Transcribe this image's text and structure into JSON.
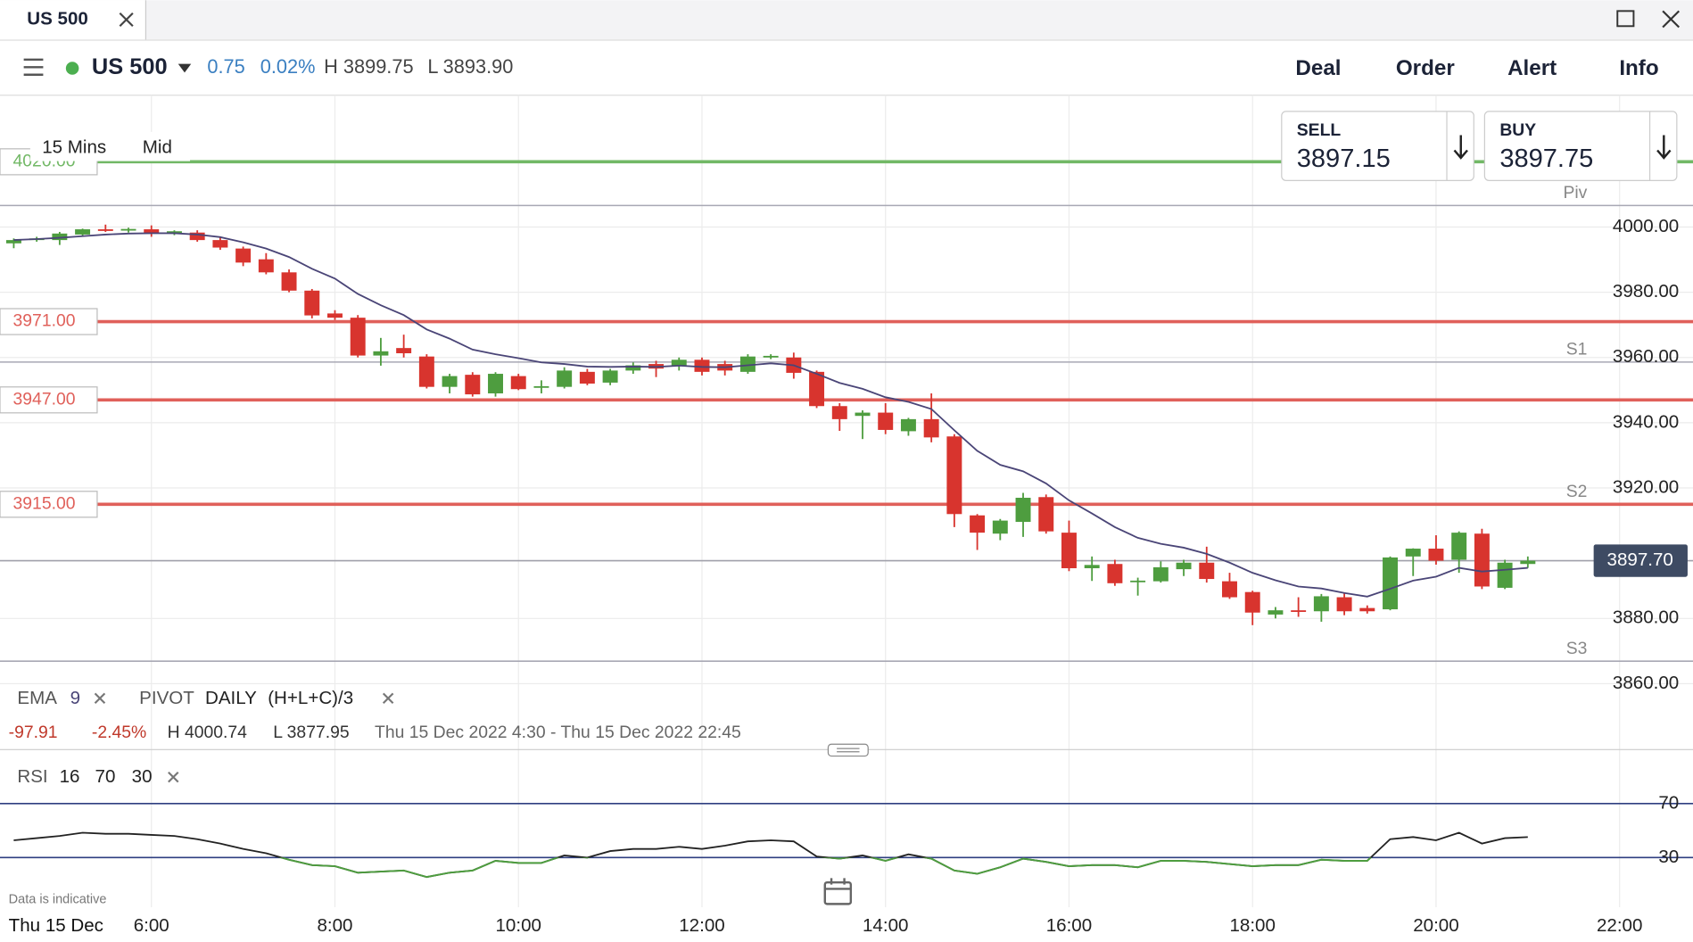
{
  "tab": {
    "title": "US 500"
  },
  "header": {
    "instrument": "US 500",
    "change": "0.75",
    "change_pct": "0.02%",
    "high": "H 3899.75",
    "low": "L 3893.90",
    "actions": [
      "Deal",
      "Order",
      "Alert",
      "Info"
    ]
  },
  "quote": {
    "sell": {
      "label": "SELL",
      "price": "3897.15"
    },
    "buy": {
      "label": "BUY",
      "price": "3897.75"
    }
  },
  "toolbar": {
    "interval": "15 Mins",
    "price": "Mid"
  },
  "indicators": {
    "ema": [
      "EMA",
      "9"
    ],
    "pivot": [
      "PIVOT",
      "DAILY",
      "(H+L+C)/3"
    ],
    "rsi": [
      "RSI",
      "16",
      "70",
      "30"
    ]
  },
  "summary": [
    "-97.91",
    "-2.45%",
    "H 4000.74",
    "L 3877.95",
    "Thu 15 Dec 2022 4:30 - Thu 15 Dec 2022 22:45"
  ],
  "footnote": "Data is indicative",
  "date_label": "Thu 15 Dec",
  "chart_data": [
    {
      "type": "candlestick",
      "x": [
        4.5,
        4.75,
        5,
        5.25,
        5.5,
        5.75,
        6,
        6.25,
        6.5,
        6.75,
        7,
        7.25,
        7.5,
        7.75,
        8,
        8.25,
        8.5,
        8.75,
        9,
        9.25,
        9.5,
        9.75,
        10,
        10.25,
        10.5,
        10.75,
        11,
        11.25,
        11.5,
        11.75,
        12,
        12.25,
        12.5,
        12.75,
        13,
        13.25,
        13.5,
        13.75,
        14,
        14.25,
        14.5,
        14.75,
        15,
        15.25,
        15.5,
        15.75,
        16,
        16.25,
        16.5,
        16.75,
        17,
        17.25,
        17.5,
        17.75,
        18,
        18.25,
        18.5,
        18.75,
        19,
        19.25,
        19.5,
        19.75,
        20,
        20.25,
        20.5,
        20.75,
        21
      ],
      "open": [
        3995,
        3996,
        3996,
        3997.7,
        3999.3,
        3998.9,
        3999.3,
        3998,
        3998.3,
        3996,
        3993.4,
        3990.1,
        3986.1,
        3980.5,
        3973.5,
        3972.2,
        3960.6,
        3962.9,
        3960.3,
        3951,
        3954.7,
        3949,
        3954.3,
        3951,
        3951,
        3955.6,
        3952.3,
        3956,
        3958,
        3957.3,
        3959.3,
        3958,
        3955.6,
        3960,
        3960,
        3955.6,
        3945.1,
        3942.1,
        3943.1,
        3937.4,
        3941.1,
        3935.8,
        3911.6,
        3906,
        3909.6,
        3917.2,
        3906.3,
        3895.4,
        3896.7,
        3891.4,
        3891.4,
        3895.1,
        3897.1,
        3891.4,
        3888.1,
        3881.2,
        3882.5,
        3882.2,
        3886.5,
        3883.2,
        3882.8,
        3899,
        3901.4,
        3898,
        3906,
        3889.4,
        3896.7
      ],
      "high": [
        3996.5,
        3997,
        3998.5,
        3999.5,
        4000.74,
        3999.8,
        4000.5,
        3999,
        3999,
        3997,
        3994,
        3992,
        3987,
        3981,
        3974.5,
        3973,
        3966,
        3967,
        3961,
        3955,
        3955.5,
        3955.5,
        3955,
        3953,
        3957,
        3956.5,
        3956.5,
        3958.5,
        3959,
        3960,
        3960,
        3959,
        3961,
        3961,
        3961.5,
        3956,
        3946,
        3943.8,
        3946,
        3941.5,
        3949,
        3936.5,
        3912,
        3910.5,
        3918.5,
        3918,
        3910,
        3899,
        3898,
        3892.5,
        3897.5,
        3898,
        3902,
        3894,
        3888.5,
        3883.5,
        3886.5,
        3887.5,
        3888,
        3884,
        3899,
        3901.5,
        3905.5,
        3906.7,
        3907.5,
        3898,
        3899
      ],
      "low": [
        3993.5,
        3995.5,
        3994.5,
        3997,
        3998.5,
        3998.3,
        3997,
        3997.5,
        3995.5,
        3993,
        3988,
        3985.5,
        3980,
        3972,
        3971.5,
        3960,
        3957.5,
        3960,
        3950.5,
        3949,
        3948,
        3948,
        3950,
        3949,
        3950.5,
        3951.5,
        3951.5,
        3955,
        3954,
        3956,
        3954.5,
        3954.5,
        3955,
        3959.5,
        3953.5,
        3944.5,
        3937.5,
        3935,
        3936.5,
        3936,
        3934,
        3908,
        3901,
        3904,
        3905,
        3906,
        3894.5,
        3891.5,
        3890,
        3887,
        3891,
        3893,
        3891,
        3886,
        3877.95,
        3880,
        3880.5,
        3879,
        3881,
        3881.5,
        3882.5,
        3893,
        3896.5,
        3894,
        3889,
        3889,
        3895.5
      ],
      "close": [
        3996,
        3996.5,
        3998,
        3999.3,
        3998.9,
        3999.4,
        3998,
        3998.7,
        3996,
        3993.7,
        3989.1,
        3986.1,
        3980.5,
        3972.9,
        3972.2,
        3960.6,
        3961.9,
        3961.3,
        3951,
        3954.3,
        3948.7,
        3955,
        3950.3,
        3951.2,
        3956,
        3952,
        3956,
        3957.6,
        3956.6,
        3959.3,
        3955.6,
        3956,
        3960.3,
        3960.5,
        3955.3,
        3945.1,
        3941.1,
        3943.1,
        3937.8,
        3941.1,
        3935.5,
        3912,
        3906.3,
        3910,
        3917,
        3906.7,
        3895.4,
        3896.4,
        3890.8,
        3891.6,
        3895.7,
        3897.1,
        3892.1,
        3886.5,
        3881.8,
        3882.5,
        3882.2,
        3886.8,
        3882.2,
        3882.2,
        3898.7,
        3901.4,
        3897.7,
        3906.3,
        3889.8,
        3897.1,
        3897.7
      ],
      "up_color": "#4e9d3f",
      "down_color": "#d8342e",
      "xlim": [
        4.35,
        22.8
      ],
      "xticks": [
        {
          "value": 6,
          "label": "6:00"
        },
        {
          "value": 8,
          "label": "8:00"
        },
        {
          "value": 10,
          "label": "10:00"
        },
        {
          "value": 12,
          "label": "12:00"
        },
        {
          "value": 14,
          "label": "14:00"
        },
        {
          "value": 16,
          "label": "16:00"
        },
        {
          "value": 18,
          "label": "18:00"
        },
        {
          "value": 20,
          "label": "20:00"
        },
        {
          "value": 22,
          "label": "22:00"
        }
      ],
      "ylim": [
        3839.8,
        4040.4
      ],
      "yticks": [
        {
          "value": 4000,
          "label": "4000.00"
        },
        {
          "value": 3980,
          "label": "3980.00"
        },
        {
          "value": 3960,
          "label": "3960.00"
        },
        {
          "value": 3940,
          "label": "3940.00"
        },
        {
          "value": 3920,
          "label": "3920.00"
        },
        {
          "value": 3880,
          "label": "3880.00"
        },
        {
          "value": 3860,
          "label": "3860.00"
        }
      ],
      "grid": true,
      "ema": {
        "color": "#4a4577",
        "values": [
          3996,
          3996.3,
          3996.7,
          3997.2,
          3997.7,
          3998,
          3998.1,
          3998.1,
          3997.7,
          3996.9,
          3995.3,
          3993.4,
          3990.8,
          3987.2,
          3984.2,
          3979.5,
          3976,
          3973,
          3968.6,
          3965.8,
          3962.4,
          3961,
          3959.8,
          3958.5,
          3958,
          3957.2,
          3957.1,
          3957.2,
          3957.1,
          3957.5,
          3957.1,
          3957,
          3957.6,
          3958.2,
          3957.6,
          3955,
          3952.2,
          3950.4,
          3947.8,
          3946.4,
          3944.2,
          3937.7,
          3931.4,
          3927.1,
          3925.1,
          3921.4,
          3916.2,
          3912.2,
          3908,
          3904.7,
          3902.9,
          3901.7,
          3899.8,
          3897.1,
          3894,
          3891.7,
          3889.8,
          3889.2,
          3887.8,
          3886.7,
          3889.1,
          3891.6,
          3892.8,
          3895.5,
          3894.4,
          3894.9,
          3895.5
        ]
      },
      "levels": [
        {
          "value": 4020,
          "label": "4020.00",
          "color": "#72b866"
        },
        {
          "value": 3971,
          "label": "3971.00",
          "color": "#e0605a"
        },
        {
          "value": 3947,
          "label": "3947.00",
          "color": "#e0605a"
        },
        {
          "value": 3915,
          "label": "3915.00",
          "color": "#e0605a"
        }
      ],
      "pivots": [
        {
          "name": "Piv",
          "value": 4006.6
        },
        {
          "name": "S1",
          "value": 3958.6
        },
        {
          "name": "S2",
          "value": 3915
        },
        {
          "name": "S3",
          "value": 3866.9
        }
      ],
      "last": {
        "value": 3897.7,
        "label": "3897.70"
      }
    },
    {
      "type": "line",
      "x": [
        4.5,
        4.75,
        5,
        5.25,
        5.5,
        5.75,
        6,
        6.25,
        6.5,
        6.75,
        7,
        7.25,
        7.5,
        7.75,
        8,
        8.25,
        8.5,
        8.75,
        9,
        9.25,
        9.5,
        9.75,
        10,
        10.25,
        10.5,
        10.75,
        11,
        11.25,
        11.5,
        11.75,
        12,
        12.25,
        12.5,
        12.75,
        13,
        13.25,
        13.5,
        13.75,
        14,
        14.25,
        14.5,
        14.75,
        15,
        15.25,
        15.5,
        15.75,
        16,
        16.25,
        16.5,
        16.75,
        17,
        17.25,
        17.5,
        17.75,
        18,
        18.25,
        18.5,
        18.75,
        19,
        19.25,
        19.5,
        19.75,
        20,
        20.25,
        20.5,
        20.75,
        21
      ],
      "series": [
        {
          "name": "RSI",
          "color": "#222222",
          "values": [
            42.8,
            44.4,
            46,
            48.4,
            47.6,
            47.6,
            46.8,
            46,
            43.6,
            40.4,
            36.4,
            33.2,
            28.4,
            24.4,
            23.6,
            18.8,
            19.6,
            20.4,
            15.6,
            18.8,
            20.4,
            27.6,
            26,
            26,
            31.6,
            30,
            34.8,
            36.4,
            36.4,
            38,
            36.4,
            38.8,
            42,
            42.8,
            42,
            30.8,
            29.2,
            31.6,
            27.6,
            32.4,
            29.2,
            20.4,
            18,
            22.8,
            29.2,
            26.8,
            23.6,
            24.4,
            24.4,
            22.8,
            27.6,
            27.6,
            26.8,
            25.2,
            23.6,
            24.4,
            24.4,
            28.4,
            27.6,
            27.6,
            43.6,
            45.2,
            42.8,
            48.4,
            40.4,
            44.4,
            45.2
          ]
        }
      ],
      "below_color": "#4e9d3f",
      "level_color": "#2f3f80",
      "xlim": [
        4.35,
        22.8
      ],
      "ylim": [
        -6.8,
        101.2
      ],
      "yticks": [
        70,
        30
      ]
    }
  ]
}
